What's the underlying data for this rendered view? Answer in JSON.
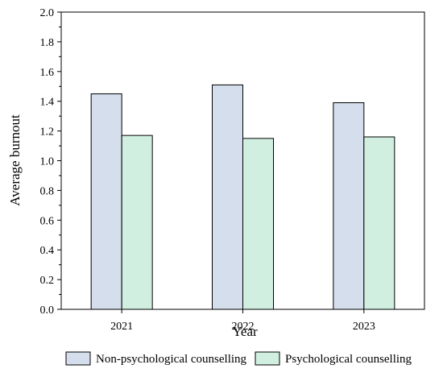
{
  "chart_data": {
    "type": "bar",
    "title": "",
    "xlabel": "Year",
    "ylabel": "Average burnout",
    "categories": [
      "2021",
      "2022",
      "2023"
    ],
    "series": [
      {
        "name": "Non-psychological counselling",
        "values": [
          1.45,
          1.51,
          1.39
        ],
        "color": "#d5deec"
      },
      {
        "name": "Psychological counselling",
        "values": [
          1.17,
          1.15,
          1.16
        ],
        "color": "#d1efe0"
      }
    ],
    "ylim": [
      0,
      2.0
    ],
    "yticks": [
      "0.0",
      "0.2",
      "0.4",
      "0.6",
      "0.8",
      "1.0",
      "1.2",
      "1.4",
      "1.6",
      "1.8",
      "2.0"
    ],
    "grid": false,
    "legend": "bottom"
  }
}
